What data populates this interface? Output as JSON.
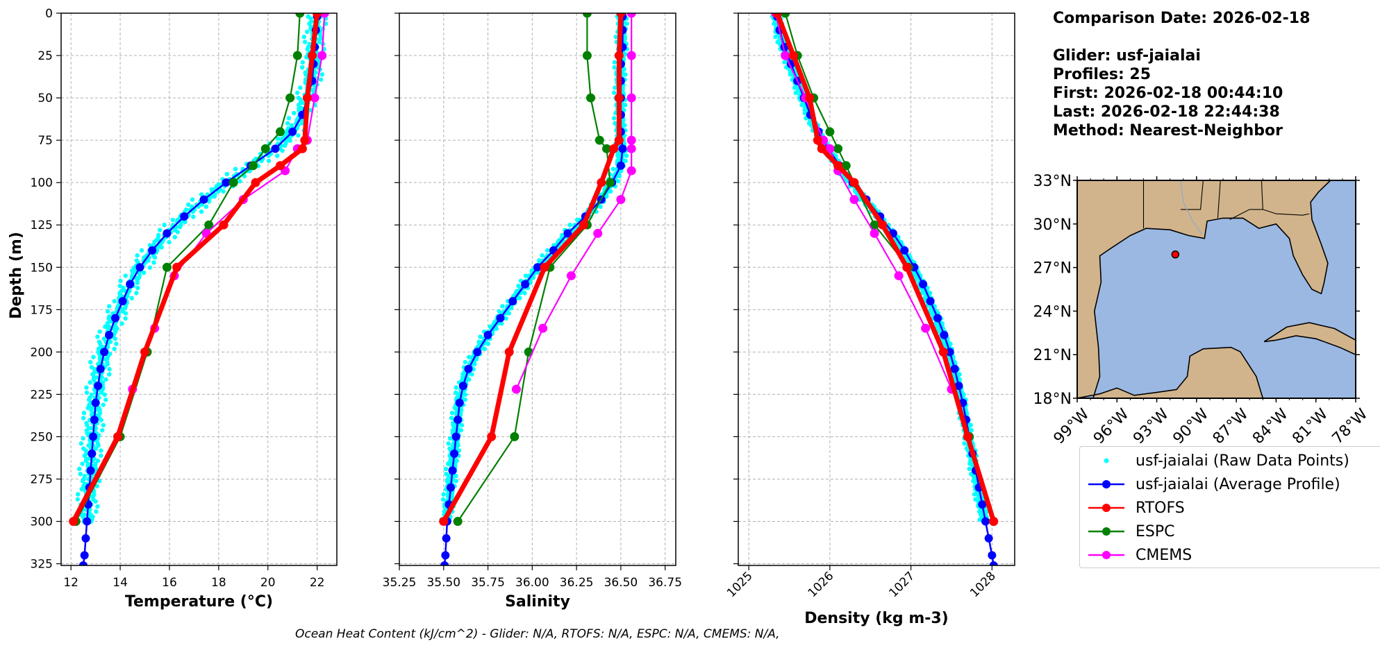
{
  "info": {
    "comparison_date": "Comparison Date: 2026-02-18",
    "glider": "Glider: usf-jaialai",
    "profiles": "Profiles: 25",
    "first": "First: 2026-02-18 00:44:10",
    "last": "Last: 2026-02-18 22:44:38",
    "method": "Method: Nearest-Neighbor"
  },
  "footer": "Ocean Heat Content (kJ/cm^2) - Glider: N/A,  RTOFS: N/A,  ESPC: N/A,  CMEMS: N/A,",
  "colors": {
    "raw": "#00ffff",
    "glider": "#0000ff",
    "rtofs": "#ff0000",
    "espc": "#008000",
    "cmems": "#ff00ff",
    "land": "#d2b48c",
    "ocean": "#9ab8e1",
    "grid": "#b0b0b0"
  },
  "legend": [
    {
      "key": "raw",
      "label": "usf-jaialai (Raw Data Points)",
      "style": "dot"
    },
    {
      "key": "glider",
      "label": "usf-jaialai (Average Profile)",
      "style": "line"
    },
    {
      "key": "rtofs",
      "label": "RTOFS",
      "style": "line"
    },
    {
      "key": "espc",
      "label": "ESPC",
      "style": "line"
    },
    {
      "key": "cmems",
      "label": "CMEMS",
      "style": "line"
    }
  ],
  "chart_data": [
    {
      "type": "line",
      "xlabel": "Temperature (°C)",
      "ylabel": "Depth (m)",
      "xlim": [
        11.6,
        22.8
      ],
      "ylim": [
        326,
        0
      ],
      "xticks": [
        12,
        14,
        16,
        18,
        20,
        22
      ],
      "yticks": [
        0,
        25,
        50,
        75,
        100,
        125,
        150,
        175,
        200,
        225,
        250,
        275,
        300,
        325
      ],
      "grid": true,
      "series": [
        {
          "name": "usf-jaialai (Average Profile)",
          "key": "glider",
          "depth": [
            2,
            10,
            20,
            30,
            40,
            50,
            60,
            70,
            80,
            90,
            100,
            110,
            120,
            130,
            140,
            150,
            160,
            170,
            180,
            190,
            200,
            210,
            220,
            230,
            240,
            250,
            260,
            270,
            280,
            290,
            300,
            310,
            320,
            326
          ],
          "values": [
            22.0,
            21.95,
            21.9,
            21.85,
            21.8,
            21.6,
            21.4,
            21.0,
            20.3,
            19.3,
            18.3,
            17.4,
            16.6,
            15.9,
            15.3,
            14.8,
            14.4,
            14.1,
            13.8,
            13.55,
            13.35,
            13.2,
            13.1,
            13.0,
            12.95,
            12.9,
            12.85,
            12.8,
            12.75,
            12.7,
            12.65,
            12.6,
            12.55,
            12.5
          ]
        },
        {
          "name": "RTOFS",
          "key": "rtofs",
          "depth": [
            0,
            25,
            50,
            75,
            80,
            90,
            100,
            125,
            150,
            200,
            250,
            300
          ],
          "values": [
            22.0,
            21.8,
            21.6,
            21.5,
            21.4,
            20.5,
            19.5,
            18.2,
            16.3,
            15.0,
            13.9,
            12.1
          ]
        },
        {
          "name": "ESPC",
          "key": "espc",
          "depth": [
            0,
            25,
            50,
            70,
            80,
            90,
            100,
            125,
            150,
            200,
            250,
            300
          ],
          "values": [
            21.3,
            21.2,
            20.9,
            20.5,
            19.9,
            19.4,
            18.6,
            17.6,
            15.9,
            15.1,
            14.0,
            12.2
          ]
        },
        {
          "name": "CMEMS",
          "key": "cmems",
          "depth": [
            0,
            25,
            50,
            75,
            80,
            93,
            110,
            130,
            155,
            186,
            222
          ],
          "values": [
            22.3,
            22.2,
            21.9,
            21.6,
            21.2,
            20.7,
            19.0,
            17.5,
            16.2,
            15.4,
            14.5
          ]
        }
      ],
      "raw_points": {
        "key": "raw",
        "offsets": [
          -0.55,
          -0.35,
          -0.15,
          0.05,
          0.25,
          0.45
        ]
      }
    },
    {
      "type": "line",
      "xlabel": "Salinity",
      "ylabel": "",
      "xlim": [
        35.25,
        36.81
      ],
      "ylim": [
        326,
        0
      ],
      "xticks": [
        35.25,
        35.5,
        35.75,
        36.0,
        36.25,
        36.5,
        36.75
      ],
      "yticks": [
        0,
        25,
        50,
        75,
        100,
        125,
        150,
        175,
        200,
        225,
        250,
        275,
        300,
        325
      ],
      "grid": true,
      "series": [
        {
          "name": "usf-jaialai (Average Profile)",
          "key": "glider",
          "depth": [
            2,
            10,
            20,
            30,
            40,
            50,
            60,
            70,
            80,
            90,
            100,
            110,
            120,
            130,
            140,
            150,
            160,
            170,
            180,
            190,
            200,
            210,
            220,
            230,
            240,
            250,
            260,
            270,
            280,
            290,
            300,
            310,
            320,
            326
          ],
          "values": [
            36.51,
            36.51,
            36.51,
            36.5,
            36.5,
            36.5,
            36.5,
            36.5,
            36.51,
            36.5,
            36.45,
            36.39,
            36.3,
            36.2,
            36.12,
            36.03,
            35.96,
            35.89,
            35.82,
            35.75,
            35.69,
            35.64,
            35.61,
            35.59,
            35.58,
            35.57,
            35.56,
            35.55,
            35.54,
            35.53,
            35.52,
            35.515,
            35.51,
            35.505
          ]
        },
        {
          "name": "RTOFS",
          "key": "rtofs",
          "depth": [
            0,
            25,
            50,
            75,
            80,
            100,
            125,
            150,
            200,
            250,
            300
          ],
          "values": [
            36.5,
            36.49,
            36.49,
            36.49,
            36.46,
            36.39,
            36.29,
            36.07,
            35.87,
            35.77,
            35.5
          ]
        },
        {
          "name": "ESPC",
          "key": "espc",
          "depth": [
            0,
            25,
            50,
            75,
            80,
            100,
            125,
            150,
            200,
            250,
            300
          ],
          "values": [
            36.31,
            36.31,
            36.33,
            36.38,
            36.42,
            36.44,
            36.31,
            36.1,
            35.98,
            35.9,
            35.58
          ]
        },
        {
          "name": "CMEMS",
          "key": "cmems",
          "depth": [
            0,
            25,
            50,
            75,
            80,
            93,
            110,
            130,
            155,
            186,
            222
          ],
          "values": [
            36.56,
            36.56,
            36.56,
            36.56,
            36.56,
            36.56,
            36.5,
            36.37,
            36.22,
            36.06,
            35.91
          ]
        }
      ],
      "raw_points": {
        "key": "raw",
        "offsets": [
          -0.045,
          -0.03,
          -0.015,
          0,
          0.015,
          0.03
        ]
      }
    },
    {
      "type": "line",
      "xlabel": "Density (kg m-3)",
      "ylabel": "",
      "xlim": [
        1024.87,
        1028.28
      ],
      "ylim": [
        326,
        0
      ],
      "xticks": [
        1025,
        1026,
        1027,
        1028
      ],
      "yticks": [
        0,
        25,
        50,
        75,
        100,
        125,
        150,
        175,
        200,
        225,
        250,
        275,
        300,
        325
      ],
      "grid": true,
      "series": [
        {
          "name": "usf-jaialai (Average Profile)",
          "key": "glider",
          "depth": [
            2,
            10,
            20,
            30,
            40,
            50,
            60,
            70,
            80,
            90,
            100,
            110,
            120,
            130,
            140,
            150,
            160,
            170,
            180,
            190,
            200,
            210,
            220,
            230,
            240,
            250,
            260,
            270,
            280,
            290,
            300,
            310,
            320,
            326
          ],
          "values": [
            1025.35,
            1025.38,
            1025.44,
            1025.52,
            1025.6,
            1025.68,
            1025.76,
            1025.86,
            1025.98,
            1026.12,
            1026.28,
            1026.45,
            1026.62,
            1026.78,
            1026.92,
            1027.04,
            1027.15,
            1027.24,
            1027.33,
            1027.41,
            1027.48,
            1027.54,
            1027.59,
            1027.64,
            1027.68,
            1027.72,
            1027.76,
            1027.8,
            1027.84,
            1027.88,
            1027.92,
            1027.96,
            1028.0,
            1028.02
          ]
        },
        {
          "name": "RTOFS",
          "key": "rtofs",
          "depth": [
            0,
            25,
            50,
            75,
            80,
            90,
            100,
            125,
            150,
            200,
            250,
            300
          ],
          "values": [
            1025.35,
            1025.55,
            1025.75,
            1025.85,
            1025.9,
            1026.1,
            1026.3,
            1026.65,
            1026.95,
            1027.4,
            1027.7,
            1028.02
          ]
        },
        {
          "name": "ESPC",
          "key": "espc",
          "depth": [
            0,
            25,
            50,
            70,
            80,
            90,
            100,
            125,
            150,
            200,
            250,
            300
          ],
          "values": [
            1025.45,
            1025.6,
            1025.8,
            1026.0,
            1026.1,
            1026.2,
            1026.3,
            1026.55,
            1026.97,
            1027.4,
            1027.72,
            1028.02
          ]
        },
        {
          "name": "CMEMS",
          "key": "cmems",
          "depth": [
            0,
            25,
            50,
            75,
            80,
            93,
            110,
            130,
            155,
            186,
            222
          ],
          "values": [
            1025.33,
            1025.45,
            1025.7,
            1025.92,
            1026.0,
            1026.1,
            1026.3,
            1026.55,
            1026.85,
            1027.18,
            1027.5
          ]
        }
      ],
      "raw_points": {
        "key": "raw",
        "offsets": [
          -0.09,
          -0.06,
          -0.03,
          0,
          0.03,
          0.06
        ]
      }
    }
  ],
  "map": {
    "lon_ticks": [
      "99°W",
      "96°W",
      "93°W",
      "90°W",
      "87°W",
      "84°W",
      "81°W",
      "78°W"
    ],
    "lat_ticks": [
      "33°N",
      "30°N",
      "27°N",
      "24°N",
      "21°N",
      "18°N"
    ],
    "lon_range": [
      -99,
      -78
    ],
    "lat_range": [
      18,
      33
    ],
    "glider_position": {
      "lon": -91.6,
      "lat": 27.9
    }
  }
}
